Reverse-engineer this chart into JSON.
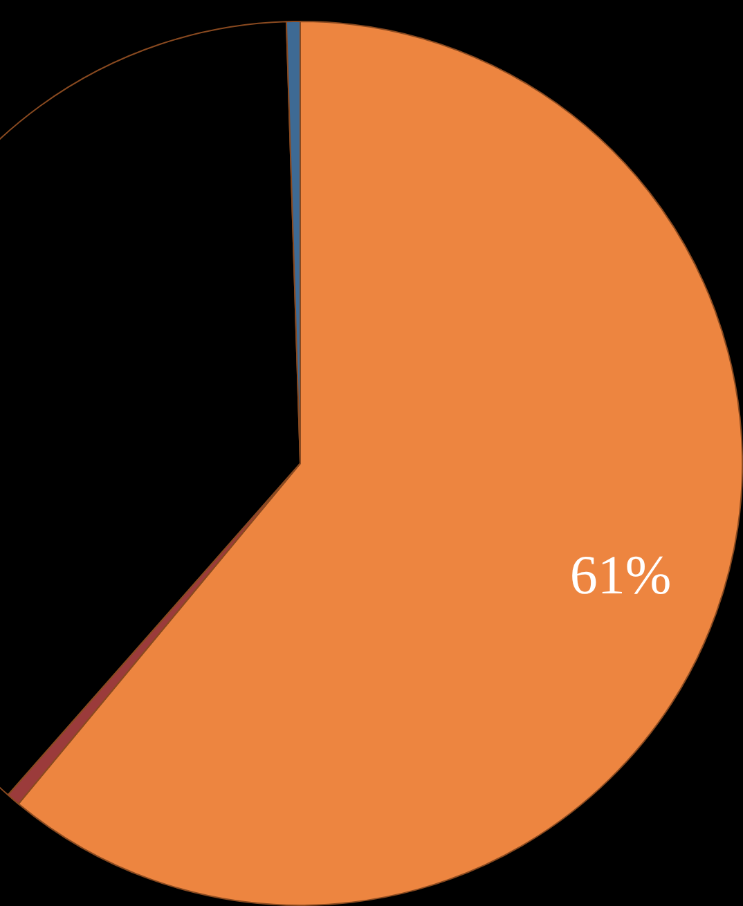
{
  "chart_data": {
    "type": "pie",
    "categories": [
      null,
      null,
      null,
      null
    ],
    "values": [
      61,
      0.5,
      38,
      0.5
    ],
    "colors": [
      "#ed8540",
      "#9b3b3b",
      "#000000",
      "#3e6a94"
    ],
    "value_labels": [
      "61%",
      null,
      null,
      null
    ],
    "legend": false
  }
}
